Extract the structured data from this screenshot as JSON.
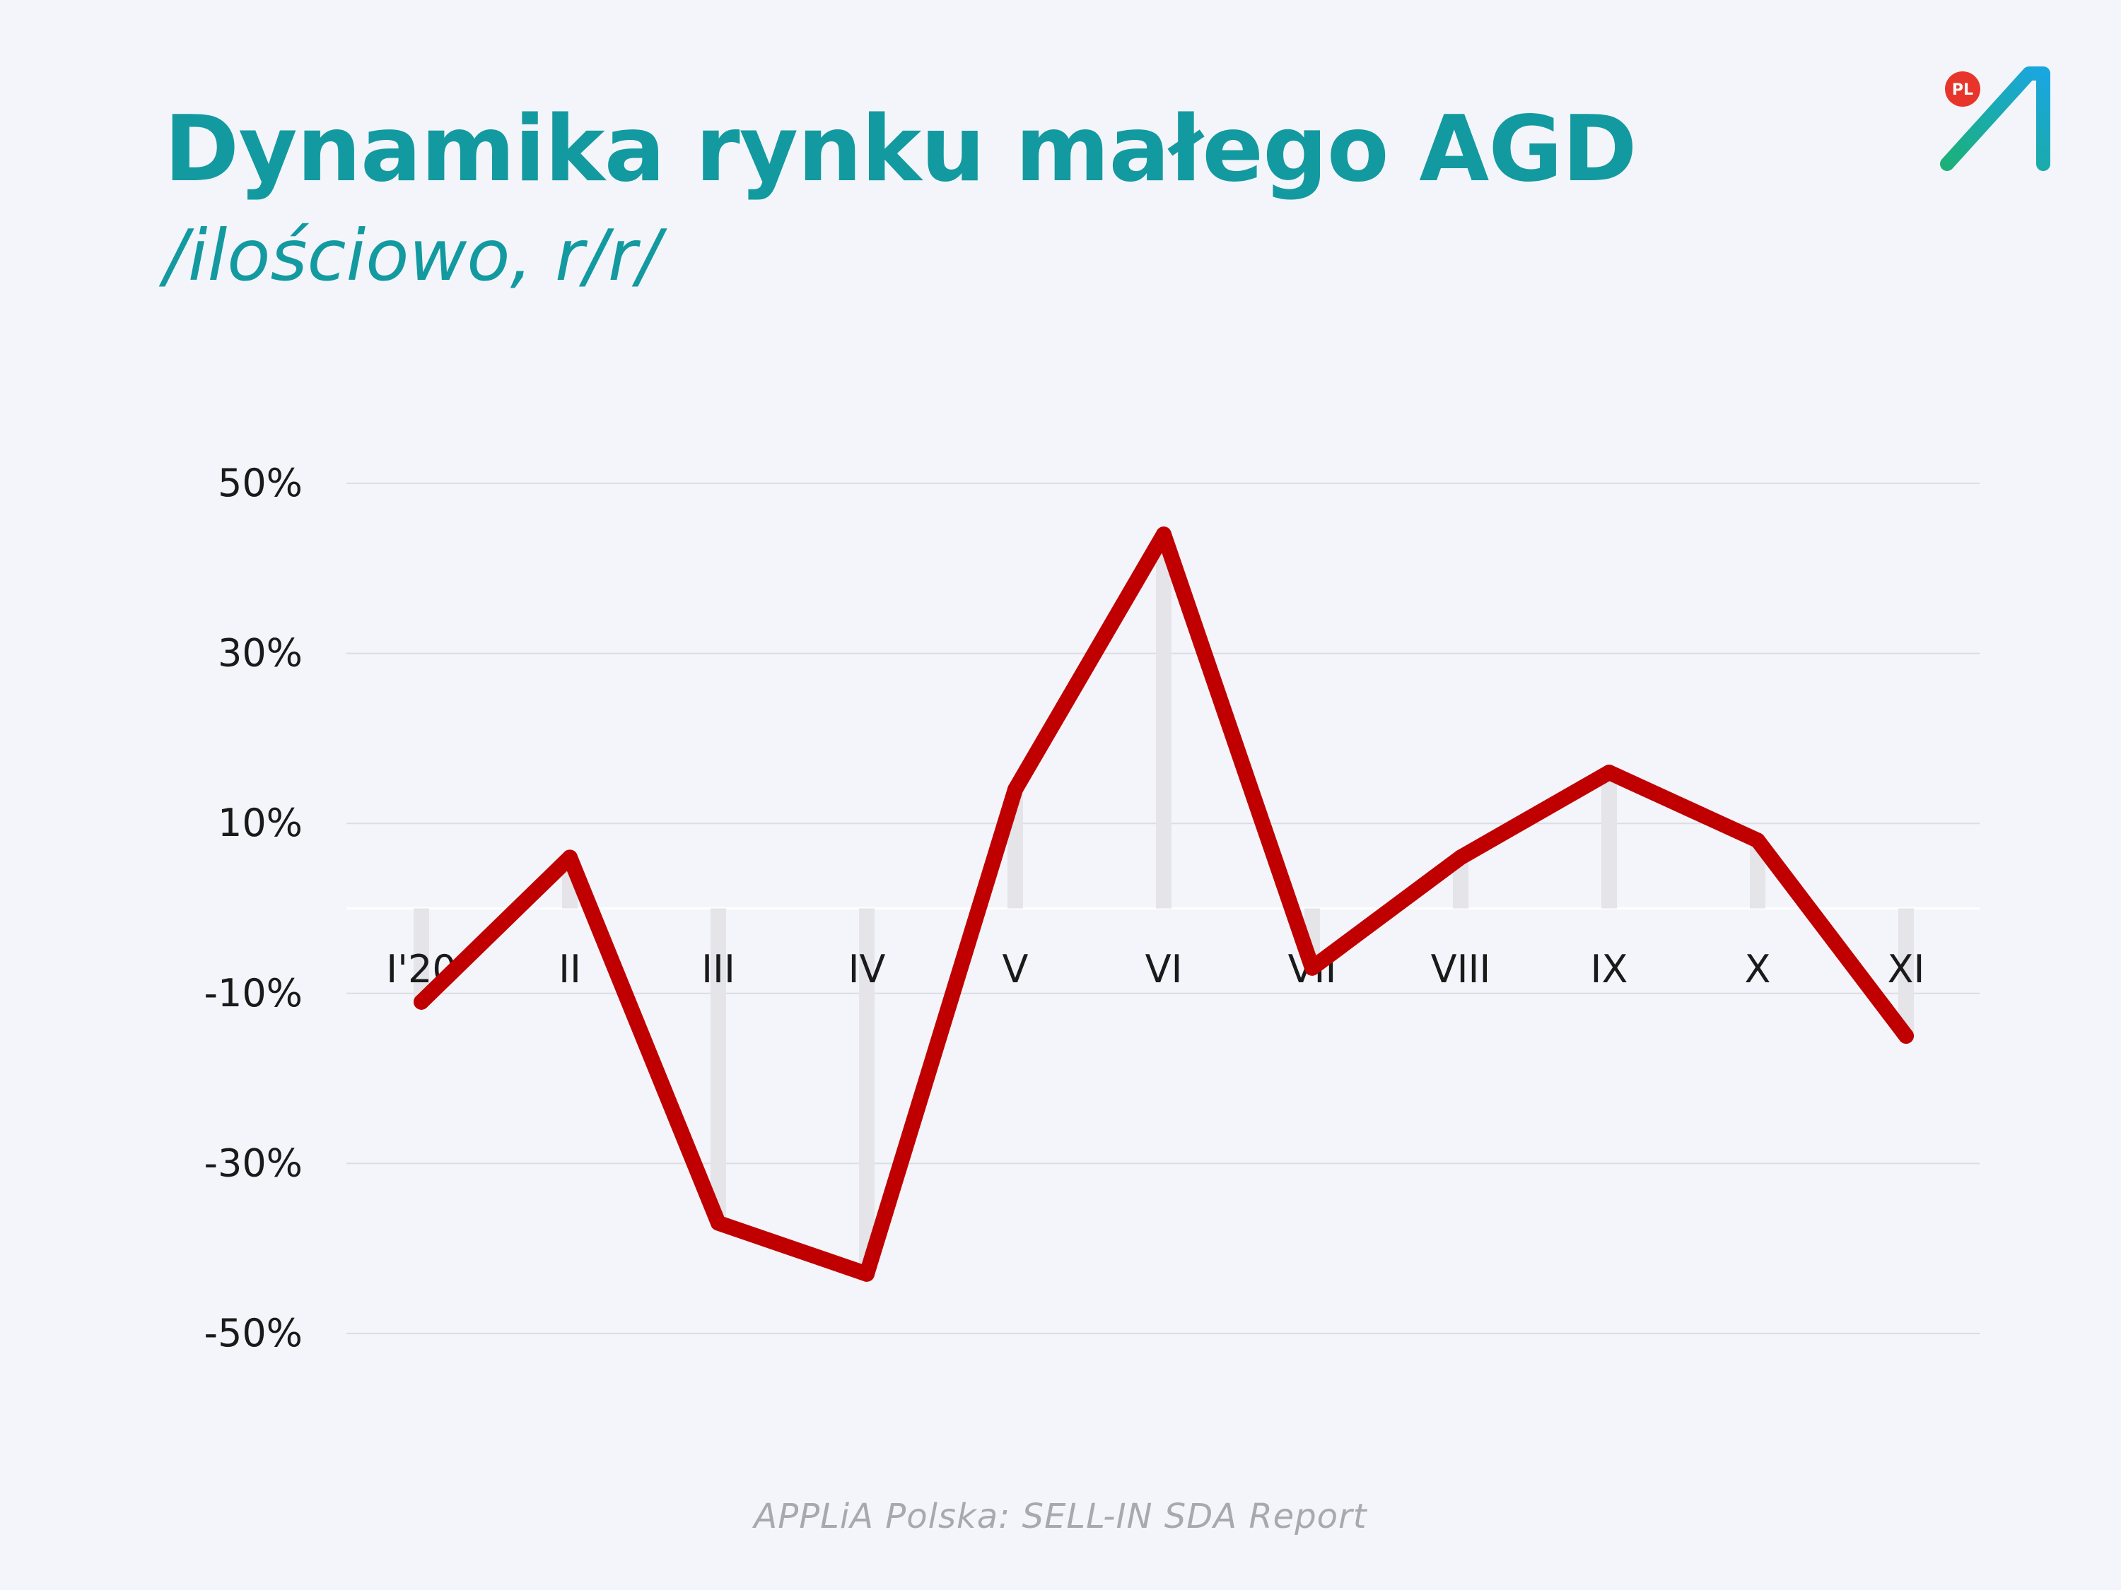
{
  "title": "Dynamika rynku małego AGD",
  "subtitle": "/ilościowo, r/r/",
  "source": "APPLiA Polska: SELL-IN SDA Report",
  "logo": {
    "badge_text": "PL",
    "icon": "applia-a-logo-icon",
    "badge_color": "#e8352b"
  },
  "colors": {
    "title": "#139aa0",
    "line": "#c00000",
    "bars": "#e4e4e9",
    "grid": "#dcdde3",
    "axis_text": "#1a1a1a"
  },
  "chart_data": {
    "type": "line",
    "categories": [
      "I'20",
      "II",
      "III",
      "IV",
      "V",
      "VI",
      "VII",
      "VIII",
      "IX",
      "X",
      "XI"
    ],
    "series": [
      {
        "values": [
          -11,
          6,
          -37,
          -43,
          14,
          44,
          -7,
          6,
          16,
          8,
          -15
        ]
      }
    ],
    "bars_behind_line": true,
    "ylim": [
      -50,
      50
    ],
    "yticks": [
      50,
      30,
      10,
      -10,
      -30,
      -50
    ],
    "ytick_labels": [
      "50%",
      "30%",
      "10%",
      "-10%",
      "-30%",
      "-50%"
    ],
    "xlabel": "",
    "ylabel": "",
    "grid": true,
    "legend": "none"
  }
}
